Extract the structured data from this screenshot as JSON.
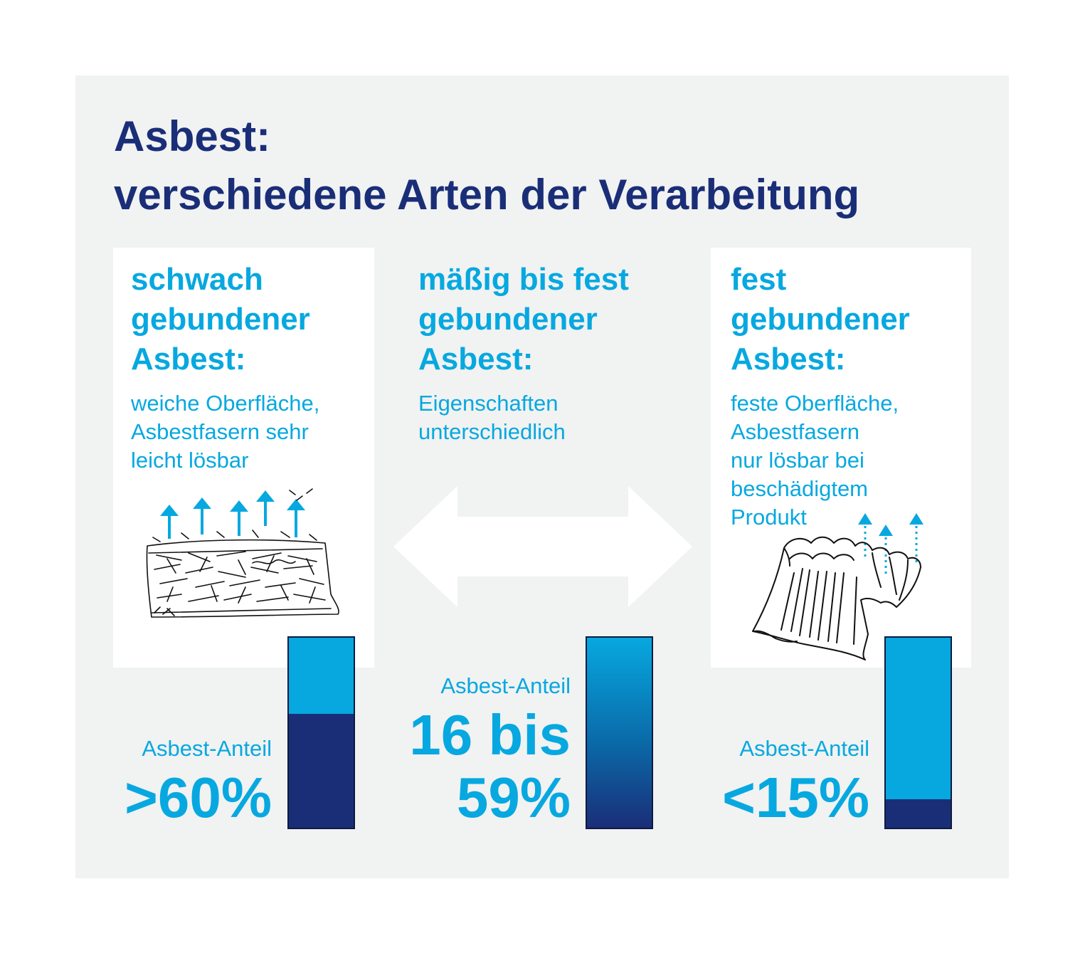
{
  "title": {
    "line1": "Asbest:",
    "line2": "verschiedene Arten der Verarbeitung"
  },
  "colors": {
    "navy": "#1a2e78",
    "cyan": "#07a8e0",
    "panel": "#f1f2f2",
    "card": "#ffffff"
  },
  "columns": [
    {
      "heading": [
        "schwach",
        "gebundener",
        "Asbest:"
      ],
      "description": [
        "weiche Oberfläche,",
        "Asbestfasern sehr",
        "leicht lösbar"
      ],
      "anteil_label": "Asbest-Anteil",
      "anteil_value": [
        ">60%"
      ],
      "icon": "loose-fiber-block-icon",
      "bar_navy_fraction": 0.6
    },
    {
      "heading": [
        "mäßig bis fest",
        "gebundener",
        "Asbest:"
      ],
      "description": [
        "Eigenschaften",
        "unterschiedlich"
      ],
      "anteil_label": "Asbest-Anteil",
      "anteil_value": [
        "16 bis",
        "59%"
      ],
      "icon": "double-arrow-icon",
      "bar_style": "gradient"
    },
    {
      "heading": [
        "fest",
        "gebundener",
        "Asbest:"
      ],
      "description": [
        "feste Oberfläche,",
        "Asbestfasern",
        "nur lösbar bei",
        "beschädigtem",
        "Produkt"
      ],
      "anteil_label": "Asbest-Anteil",
      "anteil_value": [
        "<15%"
      ],
      "icon": "corrugated-sheet-icon",
      "bar_navy_fraction": 0.15
    }
  ]
}
